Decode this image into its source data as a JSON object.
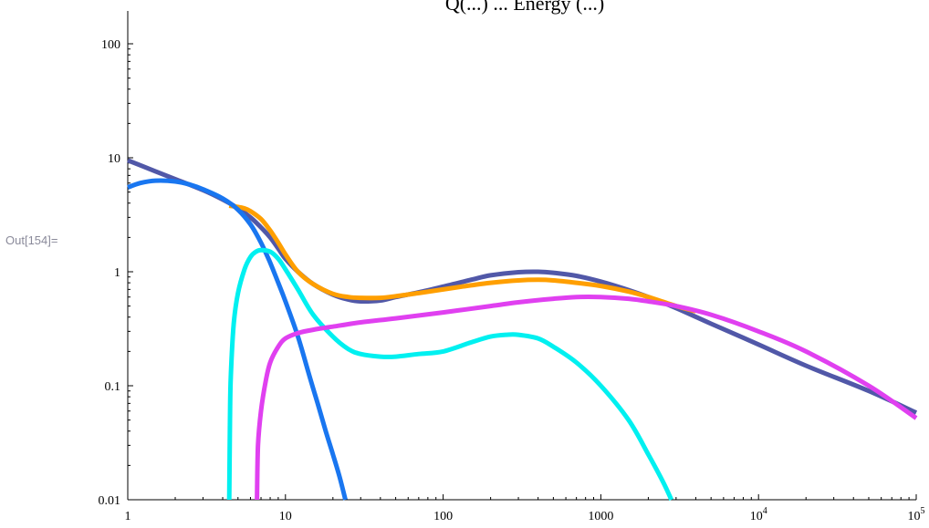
{
  "cell_label": "Out[154]=",
  "chart_data": {
    "type": "line",
    "title": "Q(...) ... Energy (...)",
    "x_scale": "log",
    "y_scale": "log",
    "xlim": [
      1,
      100000
    ],
    "ylim": [
      0.01,
      200
    ],
    "x_ticks": [
      {
        "value": 1,
        "base": "1",
        "exp": ""
      },
      {
        "value": 10,
        "base": "10",
        "exp": ""
      },
      {
        "value": 100,
        "base": "100",
        "exp": ""
      },
      {
        "value": 1000,
        "base": "1000",
        "exp": ""
      },
      {
        "value": 10000,
        "base": "10",
        "exp": "4"
      },
      {
        "value": 100000,
        "base": "10",
        "exp": "5"
      }
    ],
    "y_ticks": [
      {
        "value": 0.01,
        "label": "0.01"
      },
      {
        "value": 0.1,
        "label": "0.1"
      },
      {
        "value": 1,
        "label": "1"
      },
      {
        "value": 10,
        "label": "10"
      },
      {
        "value": 100,
        "label": "100"
      }
    ],
    "grid": false,
    "series": [
      {
        "color": "#5158a8",
        "points": [
          [
            1,
            9.5
          ],
          [
            1.5,
            7.6
          ],
          [
            2,
            6.5
          ],
          [
            3,
            5.2
          ],
          [
            4,
            4.3
          ],
          [
            5,
            3.6
          ],
          [
            6,
            3.0
          ],
          [
            7,
            2.45
          ],
          [
            8,
            2.0
          ],
          [
            9,
            1.6
          ],
          [
            10,
            1.3
          ],
          [
            12,
            1.0
          ],
          [
            15,
            0.78
          ],
          [
            20,
            0.63
          ],
          [
            25,
            0.57
          ],
          [
            30,
            0.55
          ],
          [
            40,
            0.56
          ],
          [
            50,
            0.6
          ],
          [
            70,
            0.66
          ],
          [
            100,
            0.74
          ],
          [
            150,
            0.85
          ],
          [
            200,
            0.93
          ],
          [
            300,
            0.99
          ],
          [
            400,
            1.0
          ],
          [
            500,
            0.98
          ],
          [
            700,
            0.92
          ],
          [
            1000,
            0.82
          ],
          [
            1500,
            0.69
          ],
          [
            2000,
            0.6
          ],
          [
            3000,
            0.48
          ],
          [
            5000,
            0.35
          ],
          [
            10000,
            0.23
          ],
          [
            20000,
            0.15
          ],
          [
            50000,
            0.09
          ],
          [
            100000,
            0.058
          ]
        ]
      },
      {
        "color": "#ff9f00",
        "points": [
          [
            4.4,
            3.8
          ],
          [
            5,
            3.7
          ],
          [
            5.5,
            3.6
          ],
          [
            6,
            3.4
          ],
          [
            7,
            2.9
          ],
          [
            8,
            2.3
          ],
          [
            9,
            1.8
          ],
          [
            10,
            1.42
          ],
          [
            12,
            1.0
          ],
          [
            15,
            0.78
          ],
          [
            20,
            0.64
          ],
          [
            25,
            0.6
          ],
          [
            30,
            0.59
          ],
          [
            40,
            0.59
          ],
          [
            50,
            0.61
          ],
          [
            70,
            0.65
          ],
          [
            100,
            0.7
          ],
          [
            150,
            0.76
          ],
          [
            200,
            0.8
          ],
          [
            300,
            0.84
          ],
          [
            400,
            0.85
          ],
          [
            500,
            0.84
          ],
          [
            700,
            0.8
          ],
          [
            1000,
            0.75
          ],
          [
            1500,
            0.67
          ],
          [
            2000,
            0.6
          ],
          [
            3000,
            0.5
          ],
          [
            4000,
            0.45
          ]
        ]
      },
      {
        "color": "#1976f0",
        "points": [
          [
            1,
            5.5
          ],
          [
            1.2,
            6.0
          ],
          [
            1.5,
            6.3
          ],
          [
            2,
            6.2
          ],
          [
            2.5,
            5.8
          ],
          [
            3,
            5.3
          ],
          [
            4,
            4.4
          ],
          [
            5,
            3.5
          ],
          [
            6,
            2.6
          ],
          [
            7,
            1.8
          ],
          [
            8,
            1.2
          ],
          [
            9,
            0.8
          ],
          [
            10,
            0.55
          ],
          [
            12,
            0.27
          ],
          [
            14,
            0.13
          ],
          [
            16,
            0.07
          ],
          [
            18,
            0.04
          ],
          [
            20,
            0.025
          ],
          [
            22,
            0.016
          ],
          [
            24,
            0.01
          ]
        ]
      },
      {
        "color": "#00f0f0",
        "points": [
          [
            4.4,
            0.01
          ],
          [
            4.45,
            0.05
          ],
          [
            4.5,
            0.12
          ],
          [
            4.7,
            0.35
          ],
          [
            5,
            0.65
          ],
          [
            5.5,
            1.05
          ],
          [
            6,
            1.35
          ],
          [
            6.5,
            1.5
          ],
          [
            7,
            1.55
          ],
          [
            8,
            1.5
          ],
          [
            9,
            1.3
          ],
          [
            10,
            1.05
          ],
          [
            12,
            0.7
          ],
          [
            15,
            0.42
          ],
          [
            20,
            0.27
          ],
          [
            25,
            0.21
          ],
          [
            30,
            0.19
          ],
          [
            40,
            0.18
          ],
          [
            50,
            0.18
          ],
          [
            70,
            0.19
          ],
          [
            100,
            0.2
          ],
          [
            150,
            0.24
          ],
          [
            200,
            0.27
          ],
          [
            250,
            0.28
          ],
          [
            300,
            0.28
          ],
          [
            400,
            0.26
          ],
          [
            500,
            0.22
          ],
          [
            700,
            0.16
          ],
          [
            1000,
            0.1
          ],
          [
            1500,
            0.05
          ],
          [
            2000,
            0.025
          ],
          [
            2500,
            0.014
          ],
          [
            2800,
            0.01
          ]
        ]
      },
      {
        "color": "#e040f0",
        "points": [
          [
            6.6,
            0.01
          ],
          [
            6.7,
            0.03
          ],
          [
            7,
            0.06
          ],
          [
            7.5,
            0.11
          ],
          [
            8,
            0.16
          ],
          [
            9,
            0.22
          ],
          [
            10,
            0.26
          ],
          [
            12,
            0.29
          ],
          [
            15,
            0.31
          ],
          [
            20,
            0.33
          ],
          [
            30,
            0.36
          ],
          [
            50,
            0.39
          ],
          [
            100,
            0.44
          ],
          [
            200,
            0.5
          ],
          [
            300,
            0.54
          ],
          [
            500,
            0.58
          ],
          [
            700,
            0.6
          ],
          [
            1000,
            0.6
          ],
          [
            1500,
            0.58
          ],
          [
            2000,
            0.55
          ],
          [
            3000,
            0.5
          ],
          [
            5000,
            0.42
          ],
          [
            10000,
            0.3
          ],
          [
            20000,
            0.2
          ],
          [
            50000,
            0.1
          ],
          [
            100000,
            0.052
          ]
        ]
      }
    ]
  }
}
